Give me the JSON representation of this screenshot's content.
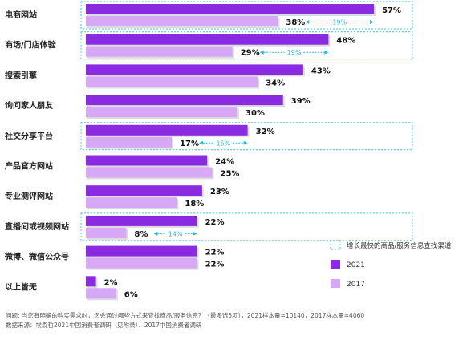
{
  "chart_data": {
    "type": "bar",
    "orientation": "horizontal",
    "title": "",
    "xlabel": "",
    "ylabel": "",
    "xlim": [
      0,
      60
    ],
    "grid": false,
    "legend_position": "right",
    "value_suffix": "%",
    "categories": [
      "电商网站",
      "商场/门店体验",
      "搜索引擎",
      "询问家人朋友",
      "社交分享平台",
      "产品官方网站",
      "专业测评网站",
      "直播间或视频网站",
      "微博、微信公众号",
      "以上皆无"
    ],
    "series": [
      {
        "name": "2021",
        "color": "#8a2be2",
        "values": [
          57,
          48,
          43,
          39,
          32,
          24,
          23,
          22,
          22,
          2
        ]
      },
      {
        "name": "2017",
        "color": "#d6a8f5",
        "values": [
          38,
          29,
          34,
          30,
          17,
          25,
          18,
          8,
          22,
          6
        ]
      }
    ],
    "highlighted_categories": [
      0,
      1,
      4,
      7
    ],
    "growth_annotations": [
      {
        "category_index": 0,
        "label": "19%"
      },
      {
        "category_index": 1,
        "label": "19%"
      },
      {
        "category_index": 4,
        "label": "15%"
      },
      {
        "category_index": 7,
        "label": "14%"
      }
    ],
    "highlight_legend_label": "增长最快的商品/服务信息查找渠道"
  },
  "footnotes": {
    "question": "问题: 当您有明确的购买需求时，您会通过哪些方式来查找商品/服务信息？（最多选5项），2021样本量=10140，2017样本量=4060",
    "source": "数据来源：埃森哲2021中国消费者调研（见附录）、2017中国消费者调研"
  },
  "colors": {
    "bar_2021": "#8a2be2",
    "bar_2017": "#d6a8f5",
    "highlight_box": "#3cc4e6",
    "arrow": "#2ab6e6",
    "bar_shadow": "#dcdcdc"
  }
}
